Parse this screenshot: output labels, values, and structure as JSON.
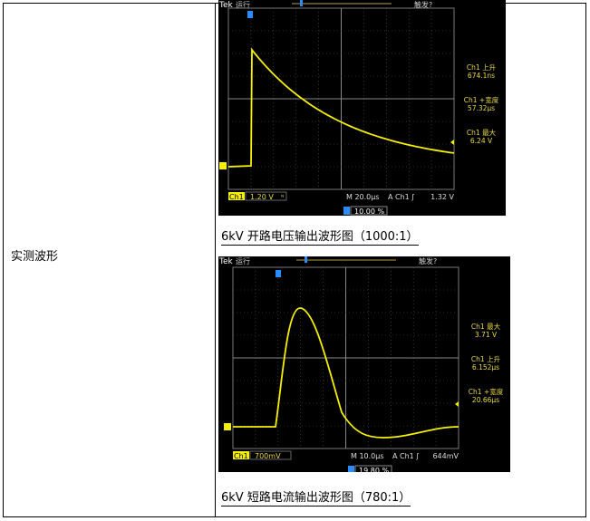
{
  "row_label": "实测波形",
  "scopes": [
    {
      "brand": "Tek",
      "state": "运行",
      "trigger_status": "触发?",
      "measurements": [
        {
          "name": "Ch1 上升",
          "value": "674.1ns"
        },
        {
          "name": "Ch1 +宽度",
          "value": "57.32µs"
        },
        {
          "name": "Ch1 最大",
          "value": "6.24 V"
        }
      ],
      "channel": "Ch1",
      "volts_div": "1.20 V",
      "bw_marker": "ᴺ",
      "timebase": "M 20.0µs",
      "trigger": "A  Ch1  ʃ",
      "trigger_level": "1.32 V",
      "trigger_pos": "10.00 %",
      "caption": "6kV 开路电压输出波形图（1000:1）"
    },
    {
      "brand": "Tek",
      "state": "运行",
      "trigger_status": "触发?",
      "measurements": [
        {
          "name": "Ch1 最大",
          "value": "3.71 V"
        },
        {
          "name": "Ch1 上升",
          "value": "6.152µs"
        },
        {
          "name": "Ch1 +宽度",
          "value": "20.66µs"
        }
      ],
      "channel": "Ch1",
      "volts_div": "700mV",
      "timebase": "M 10.0µs",
      "trigger": "A  Ch1  ʃ",
      "trigger_level": "644mV",
      "trigger_pos": "19.80 %",
      "caption": "6kV 短路电流输出波形图（780:1）"
    }
  ],
  "colors": {
    "trace": "#f5f000",
    "measure": "#e8d84a",
    "trigger_marker": "#2a8cff"
  }
}
